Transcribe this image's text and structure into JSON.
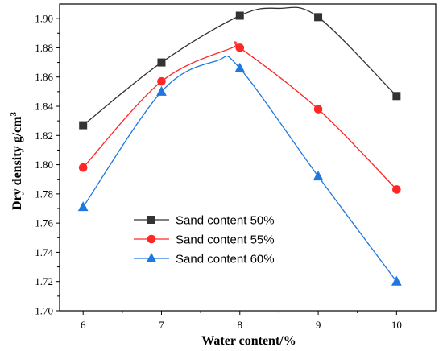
{
  "chart_data": {
    "type": "line",
    "title": "",
    "xlabel": "Water content/%",
    "ylabel": "Dry density g/cm³",
    "ylabel_main": "Dry density g/cm",
    "ylabel_sup": "3",
    "x": [
      6,
      7,
      8,
      9,
      10
    ],
    "x_tick_labels": [
      "6",
      "7",
      "8",
      "9",
      "10"
    ],
    "y_tick_labels": [
      "1.70",
      "1.72",
      "1.74",
      "1.76",
      "1.78",
      "1.80",
      "1.82",
      "1.84",
      "1.86",
      "1.88",
      "1.90"
    ],
    "xlim": [
      5.7,
      10.5
    ],
    "ylim": [
      1.7,
      1.91
    ],
    "grid": false,
    "legend_position": "lower-left",
    "series": [
      {
        "name": "Sand content 50%",
        "values": [
          1.827,
          1.87,
          1.902,
          1.901,
          1.847
        ],
        "color": "#333333",
        "marker": "square",
        "curve_x": [
          6,
          7,
          8,
          8.5,
          9,
          10
        ],
        "curve_y": [
          1.827,
          1.87,
          1.902,
          1.907,
          1.901,
          1.847
        ]
      },
      {
        "name": "Sand content 55%",
        "values": [
          1.798,
          1.857,
          1.88,
          1.838,
          1.783
        ],
        "color": "#ff2626",
        "marker": "circle",
        "curve_x": [
          6,
          7,
          7.9,
          8,
          9,
          10
        ],
        "curve_y": [
          1.798,
          1.857,
          1.88,
          1.88,
          1.838,
          1.783
        ]
      },
      {
        "name": "Sand content 60%",
        "values": [
          1.771,
          1.85,
          1.866,
          1.792,
          1.72
        ],
        "color": "#1f77e0",
        "marker": "triangle",
        "curve_x": [
          6,
          7,
          7.7,
          8,
          9,
          10
        ],
        "curve_y": [
          1.771,
          1.85,
          1.871,
          1.866,
          1.792,
          1.72
        ]
      }
    ]
  }
}
